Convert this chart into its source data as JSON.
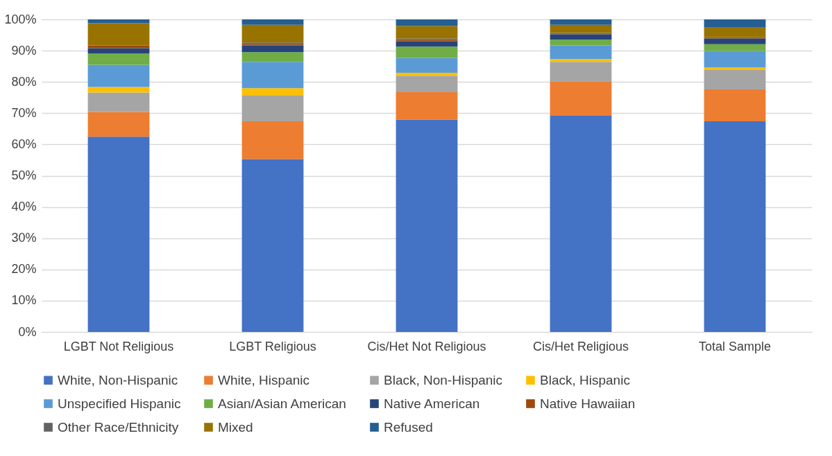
{
  "chart_data": {
    "type": "bar",
    "stacked": true,
    "categories": [
      "LGBT Not Religious",
      "LGBT Religious",
      "Cis/Het Not Religious",
      "Cis/Het Religious",
      "Total Sample"
    ],
    "ylim": [
      0,
      100
    ],
    "yticks": [
      {
        "value": 0,
        "label": "0%"
      },
      {
        "value": 10,
        "label": "10%"
      },
      {
        "value": 20,
        "label": "20%"
      },
      {
        "value": 30,
        "label": "30%"
      },
      {
        "value": 40,
        "label": "40%"
      },
      {
        "value": 50,
        "label": "50%"
      },
      {
        "value": 60,
        "label": "60%"
      },
      {
        "value": 70,
        "label": "70%"
      },
      {
        "value": 80,
        "label": "80%"
      },
      {
        "value": 90,
        "label": "90%"
      },
      {
        "value": 100,
        "label": "100%"
      }
    ],
    "grid": "y",
    "legend": "bottom",
    "series": [
      {
        "name": "White, Non-Hispanic",
        "color": "#4472c4",
        "values": [
          62.5,
          55.3,
          67.9,
          69.2,
          67.4
        ]
      },
      {
        "name": "White, Hispanic",
        "color": "#ed7d31",
        "values": [
          7.9,
          12.1,
          8.8,
          11.0,
          10.2
        ]
      },
      {
        "name": "Black, Non-Hispanic",
        "color": "#a5a5a5",
        "values": [
          6.2,
          8.4,
          5.3,
          6.2,
          6.2
        ]
      },
      {
        "name": "Black, Hispanic",
        "color": "#ffc000",
        "values": [
          1.8,
          2.2,
          0.9,
          0.9,
          0.8
        ]
      },
      {
        "name": "Unspecified Hispanic",
        "color": "#5b9bd5",
        "values": [
          7.1,
          8.4,
          4.8,
          4.4,
          5.3
        ]
      },
      {
        "name": "Asian/Asian American",
        "color": "#70ad47",
        "values": [
          3.6,
          3.1,
          3.6,
          1.8,
          2.2
        ]
      },
      {
        "name": "Native American",
        "color": "#264478",
        "values": [
          1.7,
          2.2,
          1.7,
          1.7,
          1.8
        ]
      },
      {
        "name": "Native Hawaiian",
        "color": "#9e480e",
        "values": [
          0.9,
          0.4,
          0.4,
          0,
          0.1
        ]
      },
      {
        "name": "Other Race/Ethnicity",
        "color": "#636363",
        "values": [
          0,
          0.5,
          0.5,
          0.5,
          0.3
        ]
      },
      {
        "name": "Mixed",
        "color": "#997300",
        "values": [
          7.1,
          5.7,
          4.0,
          2.6,
          3.1
        ]
      },
      {
        "name": "Refused",
        "color": "#255e91",
        "values": [
          1.2,
          1.7,
          2.1,
          1.7,
          2.6
        ]
      }
    ]
  }
}
